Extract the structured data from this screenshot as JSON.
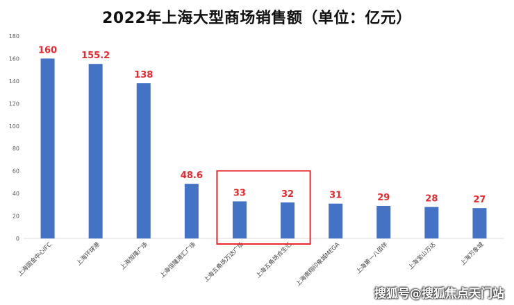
{
  "chart_data": {
    "type": "bar",
    "title": "2022年上海大型商场销售额（单位：亿元）",
    "categories": [
      "上海国金中心IFC",
      "上海环球港",
      "上海恒隆广场",
      "上海恒隆港汇广场",
      "上海五角场万达广场",
      "上海五角场合生汇",
      "上海南翔印象城MEGA",
      "上海第一八佰伴",
      "上海宝山万达",
      "上海万象城"
    ],
    "values": [
      160,
      155.2,
      138,
      48.6,
      33,
      32,
      31,
      29,
      28,
      27
    ],
    "data_labels": [
      "160",
      "155.2",
      "138",
      "48.6",
      "33",
      "32",
      "31",
      "29",
      "28",
      "27"
    ],
    "yticks": [
      "0",
      "20",
      "40",
      "60",
      "80",
      "100",
      "120",
      "140",
      "160",
      "180"
    ],
    "ylim": [
      0,
      180
    ],
    "grid": false,
    "bar_color": "#4472C4",
    "label_color": "#E8282E",
    "highlight": {
      "from_index": 4,
      "to_index": 5,
      "color": "#E8282E"
    }
  },
  "watermark": "搜狐号@搜狐焦点天门站"
}
